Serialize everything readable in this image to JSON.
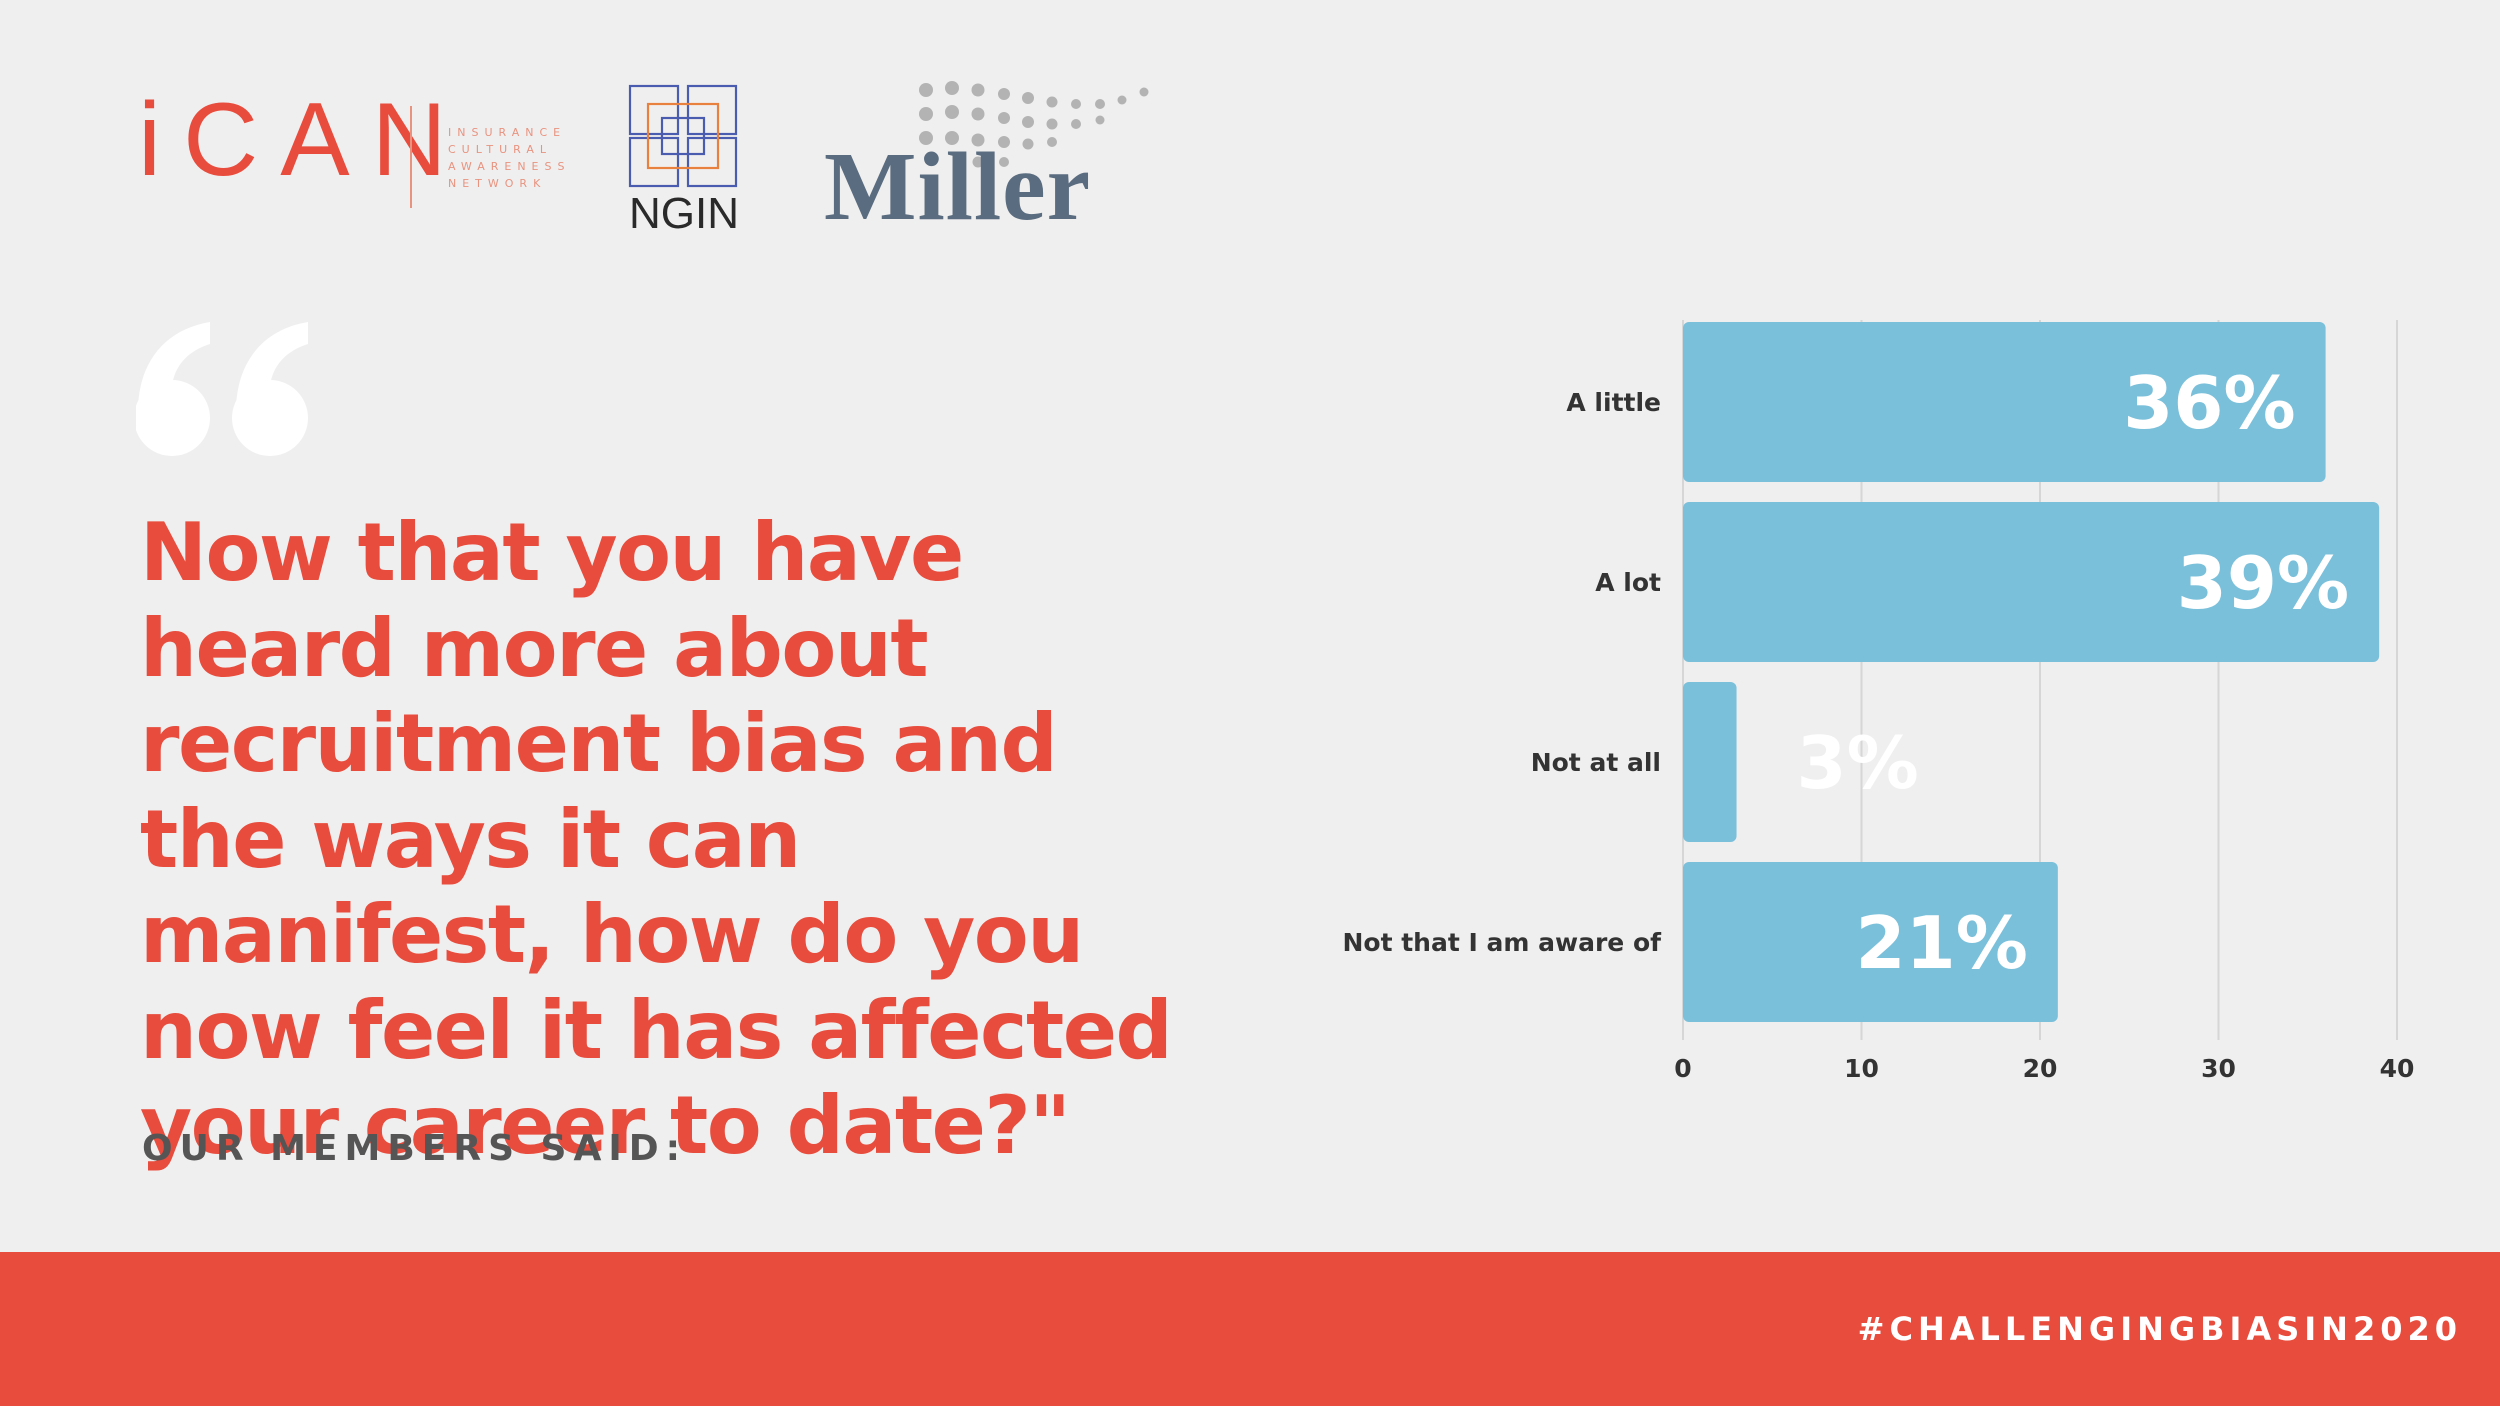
{
  "logos": {
    "ican": {
      "wordmark": "iCAN",
      "network_lines": [
        "INSURANCE",
        "CULTURAL",
        "AWARENESS",
        "NETWORK"
      ]
    },
    "ngin": {
      "text": "NGIN"
    },
    "miller": {
      "text": "Miller"
    }
  },
  "question": "Now that you have heard more about recruitment bias and the ways it can manifest, how do you now feel it has affected your career to date?\"",
  "members_said": "OUR MEMBERS SAID:",
  "hashtag": "#CHALLENGINGBIASIN2020",
  "colors": {
    "accent": "#e84c3d",
    "bar": "#7bc0da",
    "background": "#f0efef"
  },
  "chart_data": {
    "type": "bar",
    "orientation": "horizontal",
    "categories": [
      "A little",
      "A lot",
      "Not at all",
      "Not that I am aware of"
    ],
    "values": [
      36,
      39,
      3,
      21
    ],
    "data_labels": [
      "36%",
      "39%",
      "3%",
      "21%"
    ],
    "xticks": [
      "0",
      "10",
      "20",
      "30",
      "40"
    ],
    "xlim": [
      0,
      40
    ],
    "grid": true,
    "title": "",
    "xlabel": "",
    "ylabel": ""
  }
}
